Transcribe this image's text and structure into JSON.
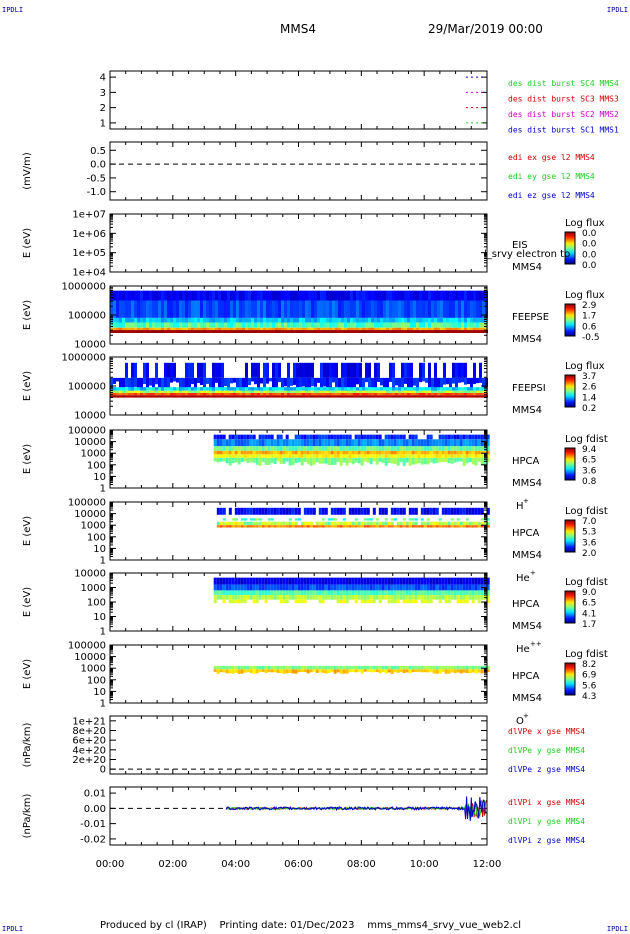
{
  "corner_labels": {
    "top_left": "IPDLI",
    "top_right": "IPDLI",
    "bottom_left": "IPDLI",
    "bottom_right": "IPDLI"
  },
  "header": {
    "title": "MMS4",
    "date": "29/Mar/2019 00:00"
  },
  "footer": {
    "produced_by": "Produced by cl (IRAP)",
    "printing_date": "Printing date: 01/Dec/2023",
    "filename": "mms_mms4_srvy_vue_web2.cl"
  },
  "colors": {
    "red": "#d40000",
    "green": "#22cc22",
    "blue": "#0000cc",
    "magenta": "#cc00cc",
    "dash": "#000000"
  },
  "chart_data": [
    {
      "type": "line",
      "id": "burst",
      "ylabel": "",
      "yticks": [
        "1",
        "2",
        "3",
        "4"
      ],
      "ylim": [
        0.6,
        4.4
      ],
      "series": [
        {
          "name": "des dist burst SC1 MMS1",
          "color": "#0000cc"
        },
        {
          "name": "des dist burst SC2 MMS2",
          "color": "#cc00cc"
        },
        {
          "name": "des dist burst SC3 MMS3",
          "color": "#d40000"
        },
        {
          "name": "des dist burst SC4 MMS4",
          "color": "#22cc22"
        }
      ]
    },
    {
      "type": "line",
      "id": "edi",
      "ylabel": "(mV/m)",
      "yticks": [
        "-1.0",
        "-0.5",
        "0.0",
        "0.5"
      ],
      "ylim": [
        -1.3,
        0.8
      ],
      "series": [
        {
          "name": "edi ex gse l2 MMS4",
          "color": "#d40000"
        },
        {
          "name": "edi ey gse l2 MMS4",
          "color": "#22cc22"
        },
        {
          "name": "edi ez gse l2 MMS4",
          "color": "#0000cc"
        }
      ]
    },
    {
      "type": "heatmap",
      "id": "eis",
      "ylabel": "E (eV)",
      "yticks": [
        "1e+04",
        "1e+05",
        "1e+06",
        "1e+07"
      ],
      "instrument": "EIS",
      "spacecraft": "MMS4",
      "overlay_text": "l_srvy electron to",
      "colorbar": {
        "title": "Log flux",
        "ticks": [
          "0.0",
          "0.0",
          "0.0",
          "0.0"
        ]
      }
    },
    {
      "type": "heatmap",
      "id": "feepse",
      "ylabel": "E (eV)",
      "yticks": [
        "10000",
        "100000",
        "1000000"
      ],
      "instrument": "FEEPSE",
      "spacecraft": "MMS4",
      "colorbar": {
        "title": "Log flux",
        "ticks": [
          "2.9",
          "1.7",
          "0.6",
          "-0.5"
        ]
      }
    },
    {
      "type": "heatmap",
      "id": "feepsi",
      "ylabel": "E (eV)",
      "yticks": [
        "10000",
        "100000",
        "1000000"
      ],
      "instrument": "FEEPSI",
      "spacecraft": "MMS4",
      "colorbar": {
        "title": "Log flux",
        "ticks": [
          "3.7",
          "2.6",
          "1.4",
          "0.2"
        ]
      }
    },
    {
      "type": "heatmap",
      "id": "hpca_h",
      "ylabel": "E (eV)",
      "yticks": [
        "1",
        "10",
        "100",
        "1000",
        "10000",
        "100000"
      ],
      "instrument": "HPCA",
      "spacecraft": "MMS4",
      "species": "H",
      "species_charge": "+",
      "colorbar": {
        "title": "Log fdist",
        "ticks": [
          "9.4",
          "6.5",
          "3.6",
          "0.8"
        ]
      }
    },
    {
      "type": "heatmap",
      "id": "hpca_he",
      "ylabel": "E (eV)",
      "yticks": [
        "1",
        "10",
        "100",
        "1000",
        "10000",
        "100000"
      ],
      "instrument": "HPCA",
      "spacecraft": "MMS4",
      "species": "He",
      "species_charge": "+",
      "colorbar": {
        "title": "Log fdist",
        "ticks": [
          "7.0",
          "5.3",
          "3.6",
          "2.0"
        ]
      }
    },
    {
      "type": "heatmap",
      "id": "hpca_hepp",
      "ylabel": "E (eV)",
      "yticks": [
        "1",
        "10",
        "100",
        "1000",
        "10000"
      ],
      "instrument": "HPCA",
      "spacecraft": "MMS4",
      "species": "He",
      "species_charge": "++",
      "colorbar": {
        "title": "Log fdist",
        "ticks": [
          "9.0",
          "6.5",
          "4.1",
          "1.7"
        ]
      }
    },
    {
      "type": "heatmap",
      "id": "hpca_o",
      "ylabel": "E (eV)",
      "yticks": [
        "1",
        "10",
        "100",
        "1000",
        "10000",
        "100000"
      ],
      "instrument": "HPCA",
      "spacecraft": "MMS4",
      "species": "O",
      "species_charge": "+",
      "colorbar": {
        "title": "Log fdist",
        "ticks": [
          "8.2",
          "6.9",
          "5.6",
          "4.3"
        ]
      }
    },
    {
      "type": "line",
      "id": "divpe",
      "ylabel": "(nPa/km)",
      "yticks": [
        "0",
        "2e+20",
        "4e+20",
        "6e+20",
        "8e+20",
        "1e+21"
      ],
      "ylim": [
        -1e+20,
        1.1e+21
      ],
      "series": [
        {
          "name": "dlVPe x gse MMS4",
          "color": "#d40000"
        },
        {
          "name": "dlVPe y gse MMS4",
          "color": "#22cc22"
        },
        {
          "name": "dlVPe z gse MMS4",
          "color": "#0000cc"
        }
      ]
    },
    {
      "type": "line",
      "id": "divpi",
      "ylabel": "(nPa/km)",
      "yticks": [
        "-0.02",
        "-0.01",
        "0.00",
        "0.01"
      ],
      "ylim": [
        -0.024,
        0.014
      ],
      "series": [
        {
          "name": "dlVPi x gse MMS4",
          "color": "#d40000"
        },
        {
          "name": "dlVPi y gse MMS4",
          "color": "#22cc22"
        },
        {
          "name": "dlVPi z gse MMS4",
          "color": "#0000cc"
        }
      ]
    }
  ],
  "x_axis": {
    "ticks": [
      "00:00",
      "02:00",
      "04:00",
      "06:00",
      "08:00",
      "10:00",
      "12:00"
    ],
    "range_hours": [
      0,
      12
    ]
  }
}
